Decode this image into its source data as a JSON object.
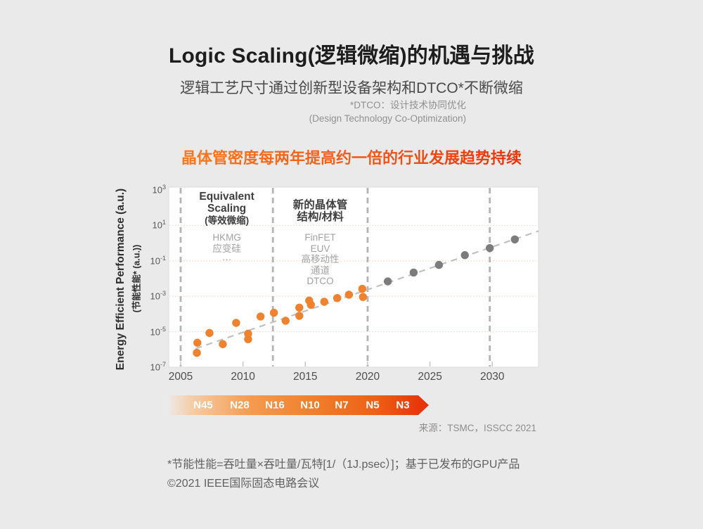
{
  "page": {
    "title": "Logic Scaling(逻辑微缩)的机遇与挑战",
    "subtitle": "逻辑工艺尺寸通过创新型设备架构和DTCO*不断微缩",
    "dtco_note_line1": "*DTCO：设计技术协同优化",
    "dtco_note_line2": "(Design Technology Co-Optimization)",
    "highlight_heading": "晶体管密度每两年提高约一倍的行业发展趋势持续",
    "source": "来源：TSMC，ISSCC 2021",
    "footnote1": "*节能性能=吞吐量×吞吐量/瓦特[1/（1J.psec）]；基于已发布的GPU产品",
    "footnote2": "©2021 IEEE国际固态电路会议"
  },
  "colors": {
    "background": "#eaeaea",
    "published_orange": "#f0812e",
    "projected_gray": "#7c7c7c",
    "trend_line": "#c0c0c0",
    "phase_divider": "#b4b4b4",
    "gridline_peach": "#f5d9c4",
    "plot_border": "#dcdcdc",
    "heading_gradient_start": "#f9791d",
    "heading_gradient_end": "#e7330a"
  },
  "chart_data": {
    "type": "scatter",
    "y_scale": "log10",
    "x_axis": {
      "ticks": [
        2005,
        2010,
        2015,
        2020,
        2025,
        2030
      ],
      "range_years": [
        2004.0,
        2033.7
      ]
    },
    "y_axis": {
      "label_en": "Energy Efficient Performance (a.u.)",
      "label_cn": "(节能性能* (a.u.))",
      "tick_exponents": [
        3,
        1,
        -1,
        -3,
        -5,
        -7
      ],
      "gridline_exponents": [
        1,
        -1,
        -3,
        -5
      ],
      "range_exponents": [
        -7.0,
        3.16
      ]
    },
    "phase_divider_years": [
      2005,
      2012.4,
      2020,
      2029.8
    ],
    "trend_line": {
      "years": [
        2006.2,
        2033.7
      ],
      "log10_values": [
        -5.95,
        0.68
      ]
    },
    "series": [
      {
        "name": "published-gpu-products",
        "color": "#f0812e",
        "points_year_log10": [
          [
            2006.34,
            -5.62
          ],
          [
            2006.3,
            -6.19
          ],
          [
            2007.31,
            -5.07
          ],
          [
            2008.38,
            -5.7
          ],
          [
            2009.45,
            -4.5
          ],
          [
            2010.41,
            -5.11
          ],
          [
            2010.41,
            -5.42
          ],
          [
            2011.41,
            -4.14
          ],
          [
            2012.48,
            -3.93
          ],
          [
            2013.42,
            -4.38
          ],
          [
            2014.52,
            -3.64
          ],
          [
            2014.52,
            -4.1
          ],
          [
            2015.31,
            -3.24
          ],
          [
            2015.45,
            -3.48
          ],
          [
            2016.52,
            -3.31
          ],
          [
            2017.56,
            -3.1
          ],
          [
            2018.5,
            -2.91
          ],
          [
            2019.57,
            -2.58
          ],
          [
            2019.63,
            -3.04
          ]
        ]
      },
      {
        "name": "projected",
        "color": "#7c7c7c",
        "points_year_log10": [
          [
            2021.62,
            -2.16
          ],
          [
            2023.69,
            -1.66
          ],
          [
            2025.72,
            -1.23
          ],
          [
            2027.8,
            -0.68
          ],
          [
            2029.8,
            -0.28
          ],
          [
            2031.81,
            0.21
          ]
        ]
      }
    ],
    "annotations": [
      {
        "title_lines": [
          "Equivalent",
          "Scaling",
          "(等效微缩)"
        ],
        "items": [
          "HKMG",
          "应变硅",
          "···"
        ],
        "center_year": 2008.7
      },
      {
        "title_lines": [
          "新的晶体管",
          "结构/材料"
        ],
        "items": [
          "FinFET",
          "EUV",
          "高移动性",
          "通道",
          "DTCO"
        ],
        "center_year": 2016.2
      }
    ]
  },
  "node_roadmap": {
    "labels": [
      "N45",
      "N28",
      "N16",
      "N10",
      "N7",
      "N5",
      "N3"
    ]
  }
}
